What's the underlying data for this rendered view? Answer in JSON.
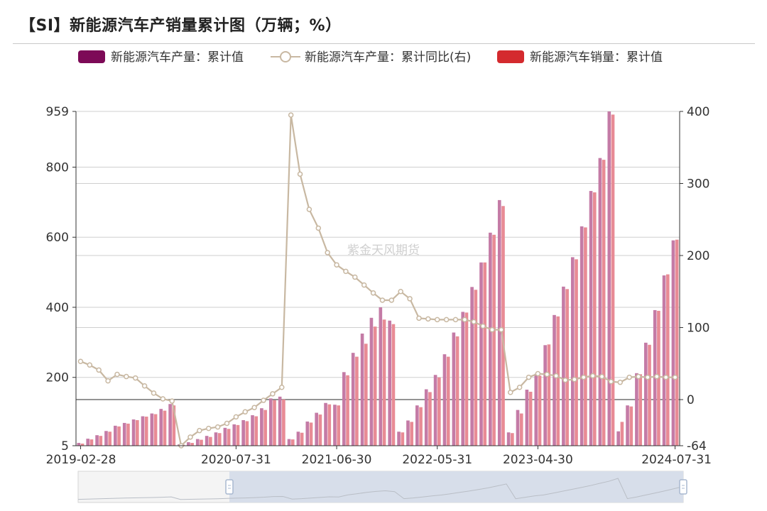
{
  "title": "【SI】新能源汽车产销量累计图（万辆；%）",
  "watermark": "紫金天风期货",
  "colors": {
    "production": "#c47ba6",
    "sales": "#e88b95",
    "yoy_line": "#c8b8a2",
    "legend_production": "#7d0a57",
    "legend_sales": "#d42a2e",
    "grid": "#cfcfcf",
    "axis": "#333333",
    "slider_fill": "#d7deea",
    "slider_handle": "#a8b8d0"
  },
  "legend": [
    {
      "label": "新能源汽车产量：累计值",
      "kind": "bar",
      "color": "#7d0a57"
    },
    {
      "label": "新能源汽车产量：累计同比(右)",
      "kind": "line",
      "color": "#c8b8a2"
    },
    {
      "label": "新能源汽车销量：累计值",
      "kind": "bar",
      "color": "#d42a2e"
    }
  ],
  "chart_data": {
    "type": "bar",
    "x_tick_labels": [
      "2019-02-28",
      "2020-07-31",
      "2021-06-30",
      "2022-05-31",
      "2023-04-30",
      "2024-07-31"
    ],
    "y_left_ticks": [
      "5",
      "200",
      "400",
      "600",
      "800",
      "959"
    ],
    "y_left_range": [
      5,
      959
    ],
    "y_right_ticks": [
      "-64",
      "0",
      "100",
      "200",
      "300",
      "400"
    ],
    "y_right_range": [
      -64,
      400
    ],
    "grid": true,
    "legend_position": "top",
    "months": [
      "2019-02",
      "2019-03",
      "2019-04",
      "2019-05",
      "2019-06",
      "2019-07",
      "2019-08",
      "2019-09",
      "2019-10",
      "2019-11",
      "2019-12",
      "2020-01",
      "2020-02",
      "2020-03",
      "2020-04",
      "2020-05",
      "2020-06",
      "2020-07",
      "2020-08",
      "2020-09",
      "2020-10",
      "2020-11",
      "2020-12",
      "2021-01",
      "2021-02",
      "2021-03",
      "2021-04",
      "2021-05",
      "2021-06",
      "2021-07",
      "2021-08",
      "2021-09",
      "2021-10",
      "2021-11",
      "2021-12",
      "2022-01",
      "2022-02",
      "2022-03",
      "2022-04",
      "2022-05",
      "2022-06",
      "2022-07",
      "2022-08",
      "2022-09",
      "2022-10",
      "2022-11",
      "2022-12",
      "2023-01",
      "2023-02",
      "2023-03",
      "2023-04",
      "2023-05",
      "2023-06",
      "2023-07",
      "2023-08",
      "2023-09",
      "2023-10",
      "2023-11",
      "2023-12",
      "2024-01",
      "2024-02",
      "2024-03",
      "2024-04",
      "2024-05",
      "2024-06",
      "2024-07"
    ],
    "series": [
      {
        "name": "新能源汽车产量：累计值",
        "kind": "bar",
        "values": [
          13,
          25,
          35,
          47,
          62,
          70,
          80,
          89,
          97,
          110,
          124,
          9,
          15,
          24,
          33,
          43,
          56,
          66,
          78,
          92,
          112,
          140,
          145,
          24,
          45,
          74,
          99,
          127,
          122,
          215,
          270,
          325,
          370,
          400,
          362,
          45,
          77,
          120,
          166,
          207,
          266,
          328,
          387,
          458,
          528,
          613,
          706,
          43,
          107,
          165,
          210,
          292,
          378,
          459,
          543,
          631,
          732,
          826,
          959,
          46,
          120,
          212,
          299,
          392,
          491,
          591
        ]
      },
      {
        "name": "新能源汽车产量：累计同比(右)",
        "kind": "line",
        "values": [
          53,
          48,
          41,
          26,
          35,
          32,
          30,
          19,
          9,
          1,
          -2,
          -64,
          -52,
          -43,
          -40,
          -38,
          -33,
          -24,
          -17,
          -11,
          -1,
          8,
          17,
          395,
          313,
          264,
          238,
          204,
          187,
          178,
          170,
          159,
          148,
          138,
          138,
          150,
          140,
          113,
          112,
          111,
          111,
          111,
          111,
          108,
          102,
          97,
          97,
          10,
          17,
          31,
          36,
          35,
          33,
          27,
          28,
          31,
          33,
          32,
          25,
          24,
          31,
          32,
          31,
          32,
          31,
          31
        ]
      },
      {
        "name": "新能源汽车销量：累计值",
        "kind": "bar",
        "values": [
          11,
          23,
          33,
          45,
          60,
          68,
          78,
          88,
          95,
          105,
          120,
          8,
          13,
          22,
          30,
          41,
          53,
          64,
          75,
          89,
          107,
          135,
          137,
          23,
          42,
          71,
          94,
          123,
          120,
          206,
          259,
          296,
          345,
          365,
          352,
          43,
          73,
          115,
          158,
          200,
          259,
          317,
          385,
          450,
          528,
          607,
          689,
          41,
          97,
          159,
          205,
          294,
          374,
          452,
          537,
          628,
          728,
          821,
          950,
          73,
          117,
          209,
          293,
          390,
          494,
          593
        ]
      }
    ]
  },
  "slider": {
    "start_fraction": 0.25,
    "end_fraction": 1.0
  }
}
